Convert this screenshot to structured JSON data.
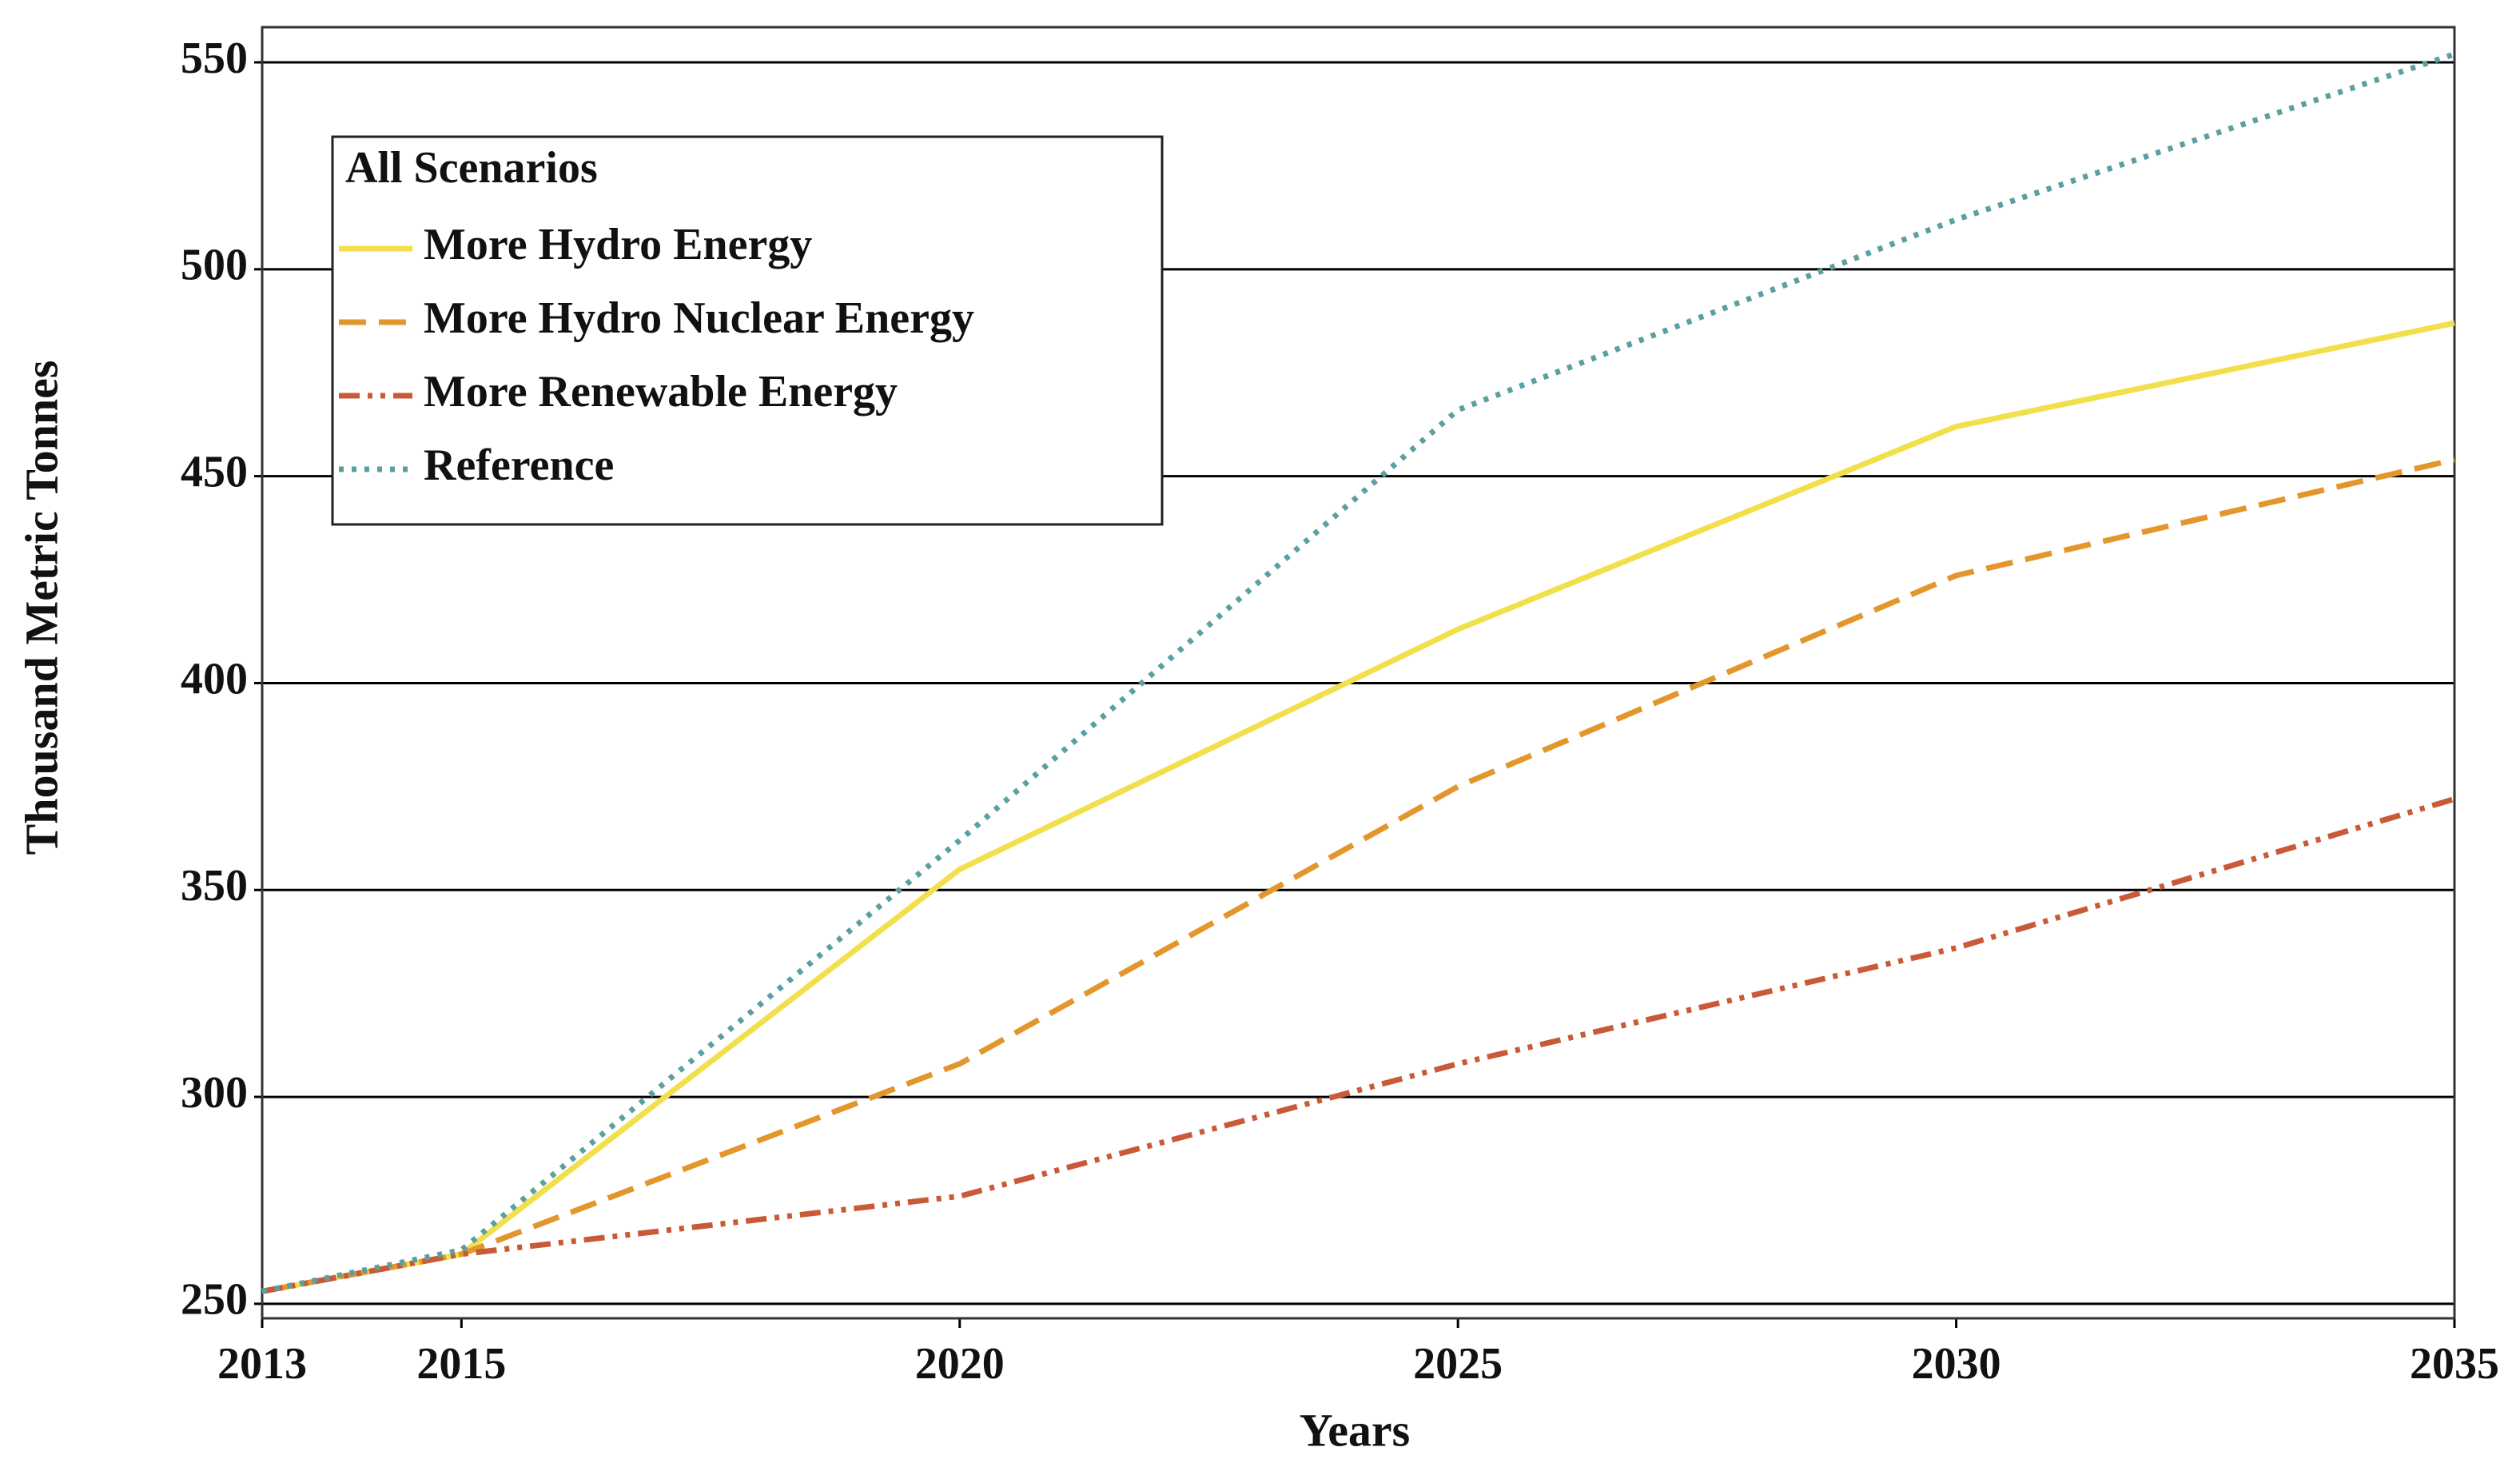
{
  "chart_data": {
    "type": "line",
    "x_label": "Years",
    "y_label": "Thousand Metric Tonnes",
    "legend_title": "All Scenarios",
    "legend": "upper left",
    "grid": true,
    "x": [
      2013,
      2015,
      2020,
      2025,
      2030,
      2035
    ],
    "xlim": [
      2013,
      2035
    ],
    "xticks": [
      2013,
      2015,
      2020,
      2025,
      2030,
      2035
    ],
    "ylim": [
      246.5,
      558.5
    ],
    "yticks": [
      250,
      300,
      350,
      400,
      450,
      500,
      550
    ],
    "series": [
      {
        "name": "More Hydro Energy",
        "color": "#f2df4c",
        "dash": "solid",
        "values": [
          253,
          262,
          355,
          413,
          462,
          487
        ]
      },
      {
        "name": "More Hydro Nuclear Energy",
        "color": "#e3962c",
        "dash": "dashed",
        "values": [
          253,
          262,
          308,
          375,
          426,
          454
        ]
      },
      {
        "name": "More Renewable Energy",
        "color": "#c95a38",
        "dash": "dashdotdot",
        "values": [
          253,
          262,
          276,
          308,
          336,
          372
        ]
      },
      {
        "name": "Reference",
        "color": "#5c9fa0",
        "dash": "dotted",
        "values": [
          253,
          263,
          362,
          466,
          512,
          552
        ]
      }
    ]
  }
}
